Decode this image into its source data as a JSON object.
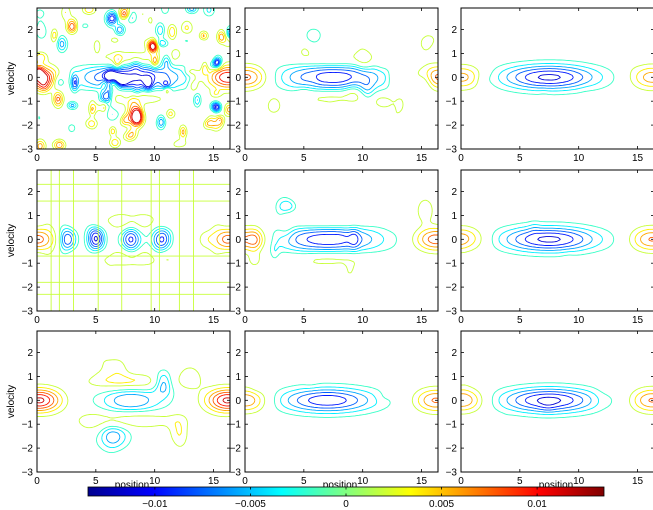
{
  "chart_data": {
    "type": "contour",
    "layout": {
      "rows": 3,
      "cols": 3
    },
    "xlabel": "position",
    "ylabel": "velocity",
    "xlim": [
      0,
      16.4
    ],
    "ylim": [
      -3,
      2.9
    ],
    "xticks": [
      0,
      5,
      10,
      15
    ],
    "yticks": [
      2,
      1,
      0,
      -1,
      -2,
      -3
    ],
    "colorbar": {
      "colormap": "jet",
      "range": [
        -0.0135,
        0.0135
      ],
      "ticks": [
        -0.01,
        -0.005,
        0,
        0.005,
        0.01
      ],
      "tick_labels": [
        "−0.01",
        "−0.005",
        "0",
        "0.005",
        "0.01"
      ]
    },
    "colormap_stops": [
      "#00008f",
      "#0000ff",
      "#00ffff",
      "#80ff80",
      "#ffff00",
      "#ff0000",
      "#800000"
    ],
    "panels": [
      {
        "row": 1,
        "col": 1,
        "style": "noisy",
        "blob_center": [
          8,
          0
        ],
        "blob_min": -0.012,
        "side_max": 0.012
      },
      {
        "row": 1,
        "col": 2,
        "style": "medium-noise",
        "blob_center": [
          7.5,
          0
        ],
        "blob_min": -0.011,
        "side_max": 0.009
      },
      {
        "row": 1,
        "col": 3,
        "style": "smooth",
        "blob_center": [
          7.5,
          0
        ],
        "blob_min": -0.012,
        "side_max": 0.007
      },
      {
        "row": 2,
        "col": 1,
        "style": "grid-artifacts",
        "blob_center": [
          8,
          0
        ],
        "blob_min": -0.012,
        "side_max": 0.008
      },
      {
        "row": 2,
        "col": 2,
        "style": "medium",
        "blob_center": [
          7,
          0
        ],
        "blob_min": -0.011,
        "side_max": 0.009
      },
      {
        "row": 2,
        "col": 3,
        "style": "smooth",
        "blob_center": [
          7.5,
          0
        ],
        "blob_min": -0.012,
        "side_max": 0.008
      },
      {
        "row": 3,
        "col": 1,
        "style": "irregular",
        "blob_center": [
          8,
          0
        ],
        "blob_min": -0.01,
        "side_max": 0.012
      },
      {
        "row": 3,
        "col": 2,
        "style": "smooth",
        "blob_center": [
          7,
          0
        ],
        "blob_min": -0.011,
        "side_max": 0.008
      },
      {
        "row": 3,
        "col": 3,
        "style": "smooth",
        "blob_center": [
          7.5,
          0
        ],
        "blob_min": -0.012,
        "side_max": 0.008
      }
    ]
  }
}
